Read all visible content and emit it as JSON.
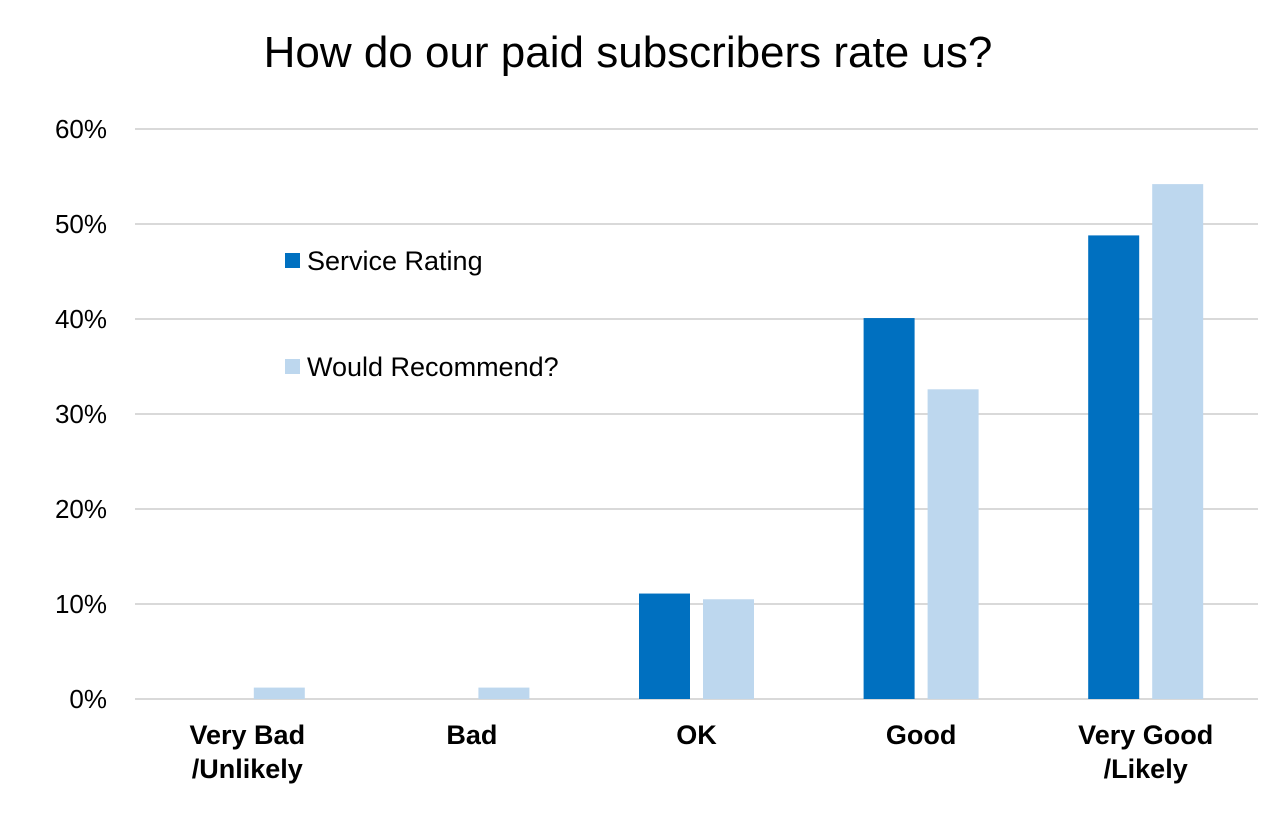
{
  "chart_data": {
    "type": "bar",
    "title": "How do our paid subscribers rate us?",
    "categories": [
      [
        "Very Bad",
        "/Unlikely"
      ],
      [
        "Bad"
      ],
      [
        "OK"
      ],
      [
        "Good"
      ],
      [
        "Very Good",
        "/Likely"
      ]
    ],
    "series": [
      {
        "name": "Service Rating",
        "color": "#0070c0",
        "values": [
          0,
          0,
          11.1,
          40.1,
          48.8
        ]
      },
      {
        "name": "Would Recommend?",
        "color": "#bdd7ee",
        "values": [
          1.2,
          1.2,
          10.5,
          32.6,
          54.2
        ]
      }
    ],
    "ylim": [
      0,
      60
    ],
    "yticks": [
      0,
      10,
      20,
      30,
      40,
      50,
      60
    ],
    "ytick_labels": [
      "0%",
      "10%",
      "20%",
      "30%",
      "40%",
      "50%",
      "60%"
    ],
    "grid": true,
    "legend_position": "upper-left inside plot"
  }
}
